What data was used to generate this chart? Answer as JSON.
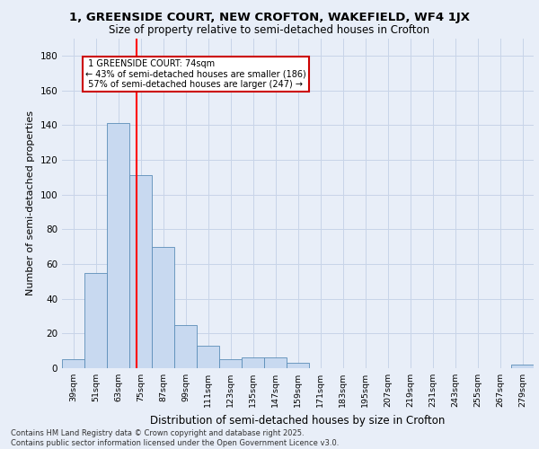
{
  "title": "1, GREENSIDE COURT, NEW CROFTON, WAKEFIELD, WF4 1JX",
  "subtitle": "Size of property relative to semi-detached houses in Crofton",
  "xlabel": "Distribution of semi-detached houses by size in Crofton",
  "ylabel": "Number of semi-detached properties",
  "categories": [
    "39sqm",
    "51sqm",
    "63sqm",
    "75sqm",
    "87sqm",
    "99sqm",
    "111sqm",
    "123sqm",
    "135sqm",
    "147sqm",
    "159sqm",
    "171sqm",
    "183sqm",
    "195sqm",
    "207sqm",
    "219sqm",
    "231sqm",
    "243sqm",
    "255sqm",
    "267sqm",
    "279sqm"
  ],
  "values": [
    5,
    55,
    141,
    111,
    70,
    25,
    13,
    5,
    6,
    6,
    3,
    0,
    0,
    0,
    0,
    0,
    0,
    0,
    0,
    0,
    2
  ],
  "bar_color": "#c8d9f0",
  "bar_edge_color": "#5b8db8",
  "subject_line_idx": 2.83,
  "subject_label": "1 GREENSIDE COURT: 74sqm",
  "pct_smaller": 43,
  "n_smaller": 186,
  "pct_larger": 57,
  "n_larger": 247,
  "ylim": [
    0,
    190
  ],
  "yticks": [
    0,
    20,
    40,
    60,
    80,
    100,
    120,
    140,
    160,
    180
  ],
  "annotation_box_color": "#ffffff",
  "annotation_box_edge_color": "#cc0000",
  "grid_color": "#c8d4e8",
  "bg_color": "#e8eef8",
  "footer_line1": "Contains HM Land Registry data © Crown copyright and database right 2025.",
  "footer_line2": "Contains public sector information licensed under the Open Government Licence v3.0."
}
